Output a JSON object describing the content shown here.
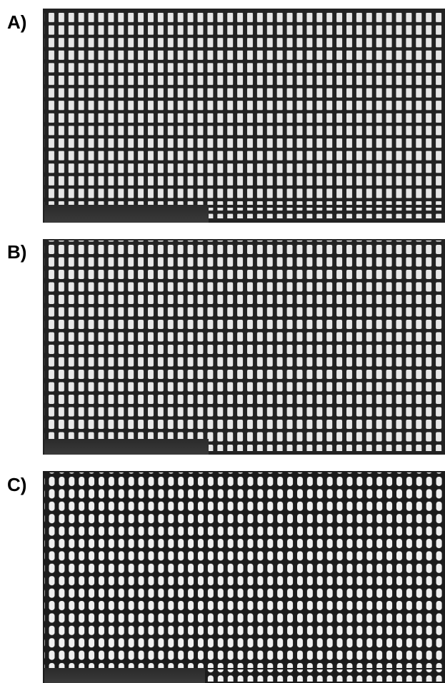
{
  "panels": [
    {
      "label": "A)"
    },
    {
      "label": "B)"
    },
    {
      "label": "C)"
    }
  ]
}
